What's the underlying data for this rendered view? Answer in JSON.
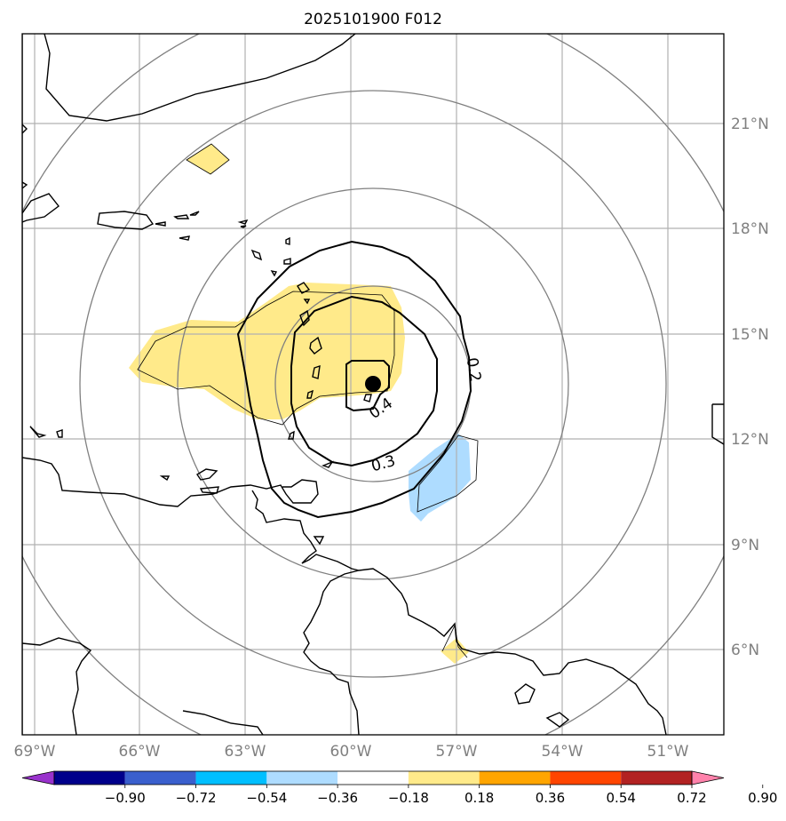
{
  "title": "2025101900 F012",
  "map": {
    "lon_labels": [
      "69°W",
      "66°W",
      "63°W",
      "60°W",
      "57°W",
      "54°W",
      "51°W"
    ],
    "lat_labels": [
      "21°N",
      "18°N",
      "15°N",
      "12°N",
      "9°N",
      "6°N"
    ],
    "contour_labels": [
      "0.2",
      "0.3",
      "0.4"
    ],
    "colors": {
      "coast": "#000000",
      "grid": "#b0b0b0",
      "range_rings": "#808080",
      "positive_shade": "#ffea8a",
      "negative_shade": "#aedcff",
      "center_marker": "#000000"
    }
  },
  "colorbar": {
    "ticks": [
      "−0.90",
      "−0.72",
      "−0.54",
      "−0.36",
      "−0.18",
      "0.18",
      "0.36",
      "0.54",
      "0.72",
      "0.90"
    ],
    "colors": [
      "#9932cc",
      "#00008b",
      "#3a5fcd",
      "#00bfff",
      "#aedcff",
      "#ffffff",
      "#ffea8a",
      "#ffa500",
      "#ff4500",
      "#b22222",
      "#ff82ab"
    ]
  }
}
